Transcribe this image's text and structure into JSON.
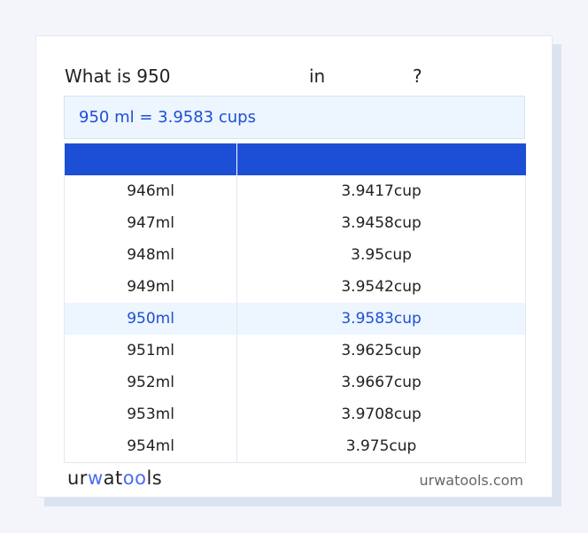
{
  "title": {
    "prefix": "What is 950",
    "in": "in",
    "q": "?"
  },
  "result": "950 ml = 3.9583 cups",
  "table": {
    "headers": [
      "",
      ""
    ],
    "rows": [
      [
        "946ml",
        "3.9417cup"
      ],
      [
        "947ml",
        "3.9458cup"
      ],
      [
        "948ml",
        "3.95cup"
      ],
      [
        "949ml",
        "3.9542cup"
      ],
      [
        "950ml",
        "3.9583cup"
      ],
      [
        "951ml",
        "3.9625cup"
      ],
      [
        "952ml",
        "3.9667cup"
      ],
      [
        "953ml",
        "3.9708cup"
      ],
      [
        "954ml",
        "3.975cup"
      ]
    ],
    "highlight_index": 4
  },
  "footer": {
    "logo": "urwatools",
    "site": "urwatools.com"
  },
  "colors": {
    "accent": "#1d4fd6",
    "highlight_bg": "#edf5ff"
  }
}
